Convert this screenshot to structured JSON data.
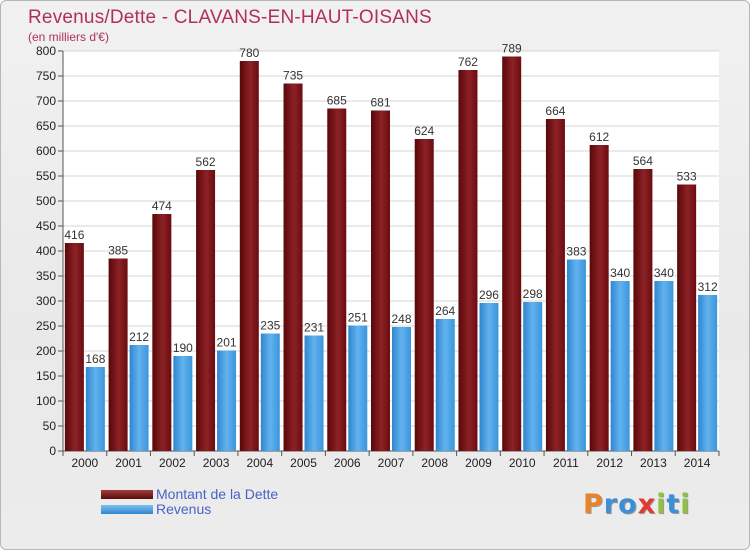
{
  "title": "Revenus/Dette - CLAVANS-EN-HAUT-OISANS",
  "subtitle": "(en milliers d'€)",
  "colors": {
    "dette": "#7b0f12",
    "revenus": "#3f9be0",
    "title": "#b0305a",
    "legend_text": "#4a62c7"
  },
  "chart_data": {
    "type": "bar",
    "categories": [
      "2000",
      "2001",
      "2002",
      "2003",
      "2004",
      "2005",
      "2006",
      "2007",
      "2008",
      "2009",
      "2010",
      "2011",
      "2012",
      "2013",
      "2014"
    ],
    "series": [
      {
        "name": "Montant de la Dette",
        "values": [
          416,
          385,
          474,
          562,
          780,
          735,
          685,
          681,
          624,
          762,
          789,
          664,
          612,
          564,
          533
        ]
      },
      {
        "name": "Revenus",
        "values": [
          168,
          212,
          190,
          201,
          235,
          231,
          251,
          248,
          264,
          296,
          298,
          383,
          340,
          340,
          312
        ]
      }
    ],
    "ylim": [
      0,
      800
    ],
    "yticks": [
      0,
      50,
      100,
      150,
      200,
      250,
      300,
      350,
      400,
      450,
      500,
      550,
      600,
      650,
      700,
      750,
      800
    ],
    "grid": true,
    "legend_position": "bottom-left"
  },
  "legend": {
    "items": [
      {
        "label": "Montant de la Dette"
      },
      {
        "label": "Revenus"
      }
    ]
  },
  "logo": {
    "letters": [
      {
        "ch": "P",
        "color": "#e8832a"
      },
      {
        "ch": "r",
        "color": "#3c8fd6"
      },
      {
        "ch": "o",
        "color": "#3c8fd6"
      },
      {
        "ch": "x",
        "color": "#e23a2e"
      },
      {
        "ch": "i",
        "color": "#8cc43f"
      },
      {
        "ch": "t",
        "color": "#3c8fd6"
      },
      {
        "ch": "i",
        "color": "#8cc43f"
      }
    ]
  }
}
